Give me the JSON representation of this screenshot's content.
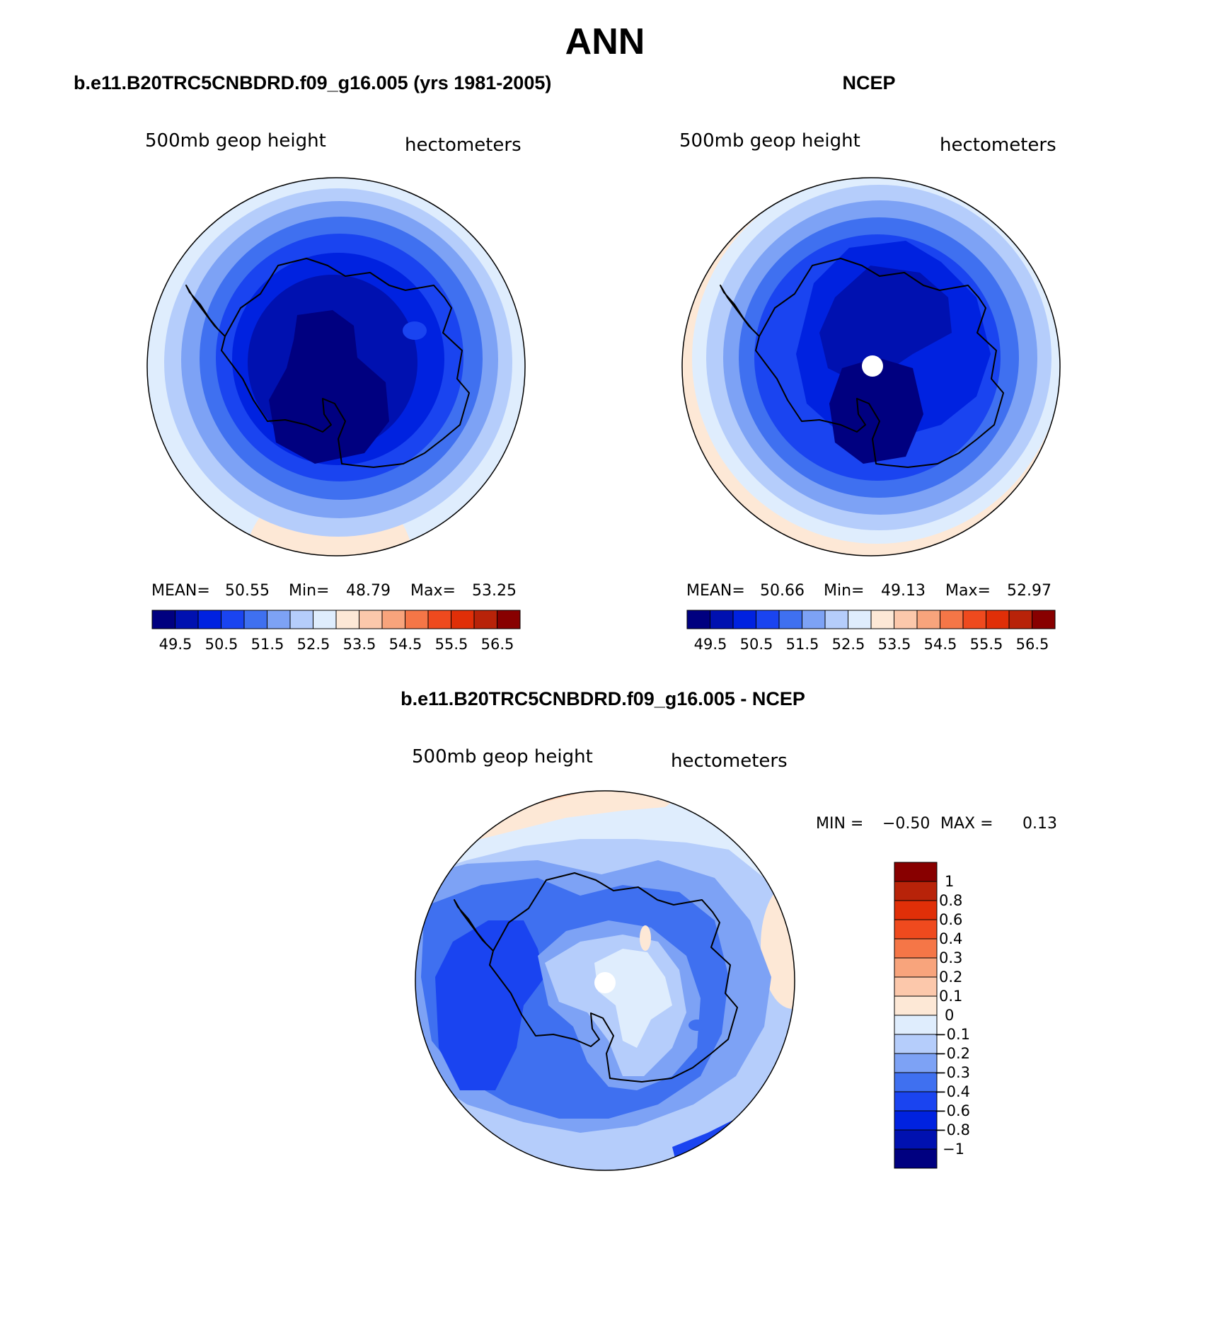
{
  "figure": {
    "title": "ANN",
    "colors": {
      "abs_scale": [
        "#000080",
        "#0011b0",
        "#0022e0",
        "#1a44f0",
        "#3f70f0",
        "#7da2f5",
        "#b5cdfb",
        "#dfedfd",
        "#fde8d6",
        "#fcc8ab",
        "#f8a47c",
        "#f57647",
        "#ef4a1e",
        "#e02f08",
        "#b82309",
        "#880000"
      ],
      "diff_scale": [
        "#000080",
        "#0011b0",
        "#0022e0",
        "#1a44f0",
        "#3f70f0",
        "#7da2f5",
        "#b5cdfb",
        "#dfedfd",
        "#fde8d6",
        "#fcc8ab",
        "#f8a47c",
        "#f57647",
        "#ef4a1e",
        "#e02f08",
        "#b82309",
        "#880000"
      ],
      "coastline": "#000000",
      "missing": "#ffffff"
    }
  },
  "panels": {
    "model": {
      "header": "b.e11.B20TRC5CNBDRD.f09_g16.005 (yrs 1981-2005)",
      "left_label": "500mb geop height",
      "right_label": "hectometers",
      "stats": {
        "mean_label": "MEAN=",
        "mean": "50.55",
        "min_label": "Min=",
        "min": "48.79",
        "max_label": "Max=",
        "max": "53.25"
      },
      "colorbar_ticks": [
        "49.5",
        "50.5",
        "51.5",
        "52.5",
        "53.5",
        "54.5",
        "55.5",
        "56.5"
      ]
    },
    "obs": {
      "header": "NCEP",
      "left_label": "500mb geop height",
      "right_label": "hectometers",
      "stats": {
        "mean_label": "MEAN=",
        "mean": "50.66",
        "min_label": "Min=",
        "min": "49.13",
        "max_label": "Max=",
        "max": "52.97"
      },
      "colorbar_ticks": [
        "49.5",
        "50.5",
        "51.5",
        "52.5",
        "53.5",
        "54.5",
        "55.5",
        "56.5"
      ]
    },
    "diff": {
      "header": "b.e11.B20TRC5CNBDRD.f09_g16.005 - NCEP",
      "left_label": "500mb geop height",
      "right_label": "hectometers",
      "minmax": {
        "min_label": "MIN =",
        "min": "−0.50",
        "max_label": "MAX =",
        "max": "0.13"
      },
      "colorbar_ticks": [
        "1",
        "0.8",
        "0.6",
        "0.4",
        "0.3",
        "0.2",
        "0.1",
        "0",
        "−0.1",
        "−0.2",
        "−0.3",
        "−0.4",
        "−0.6",
        "−0.8",
        "−1"
      ]
    }
  }
}
